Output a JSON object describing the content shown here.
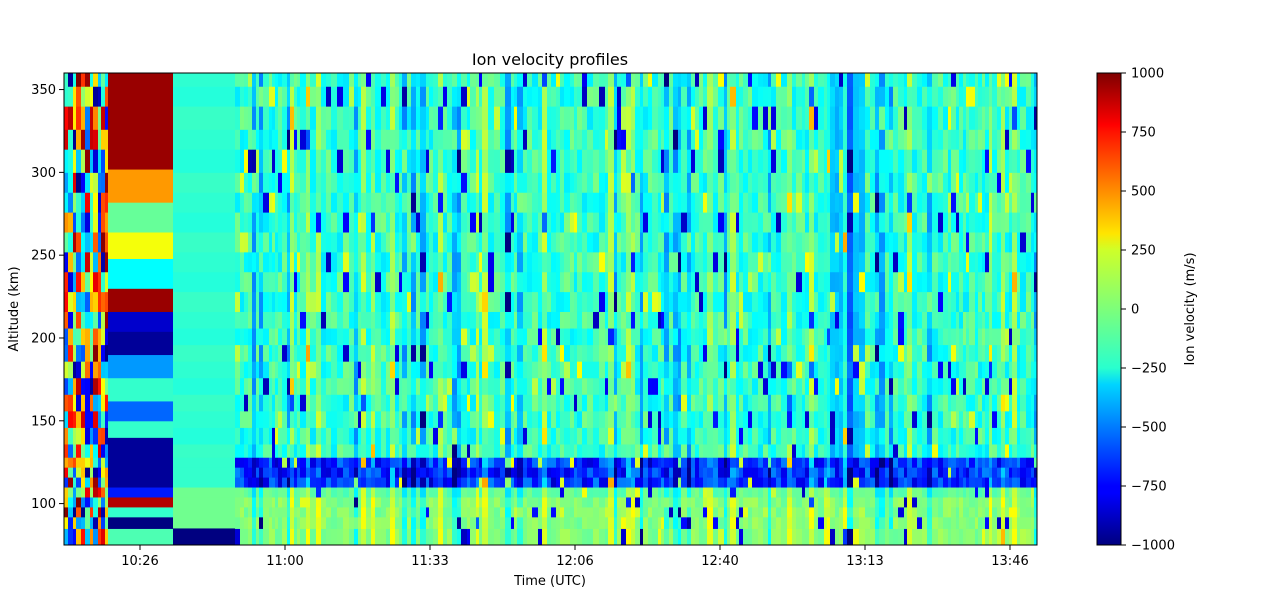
{
  "chart_data": {
    "type": "heatmap",
    "title": "Ion velocity profiles",
    "xlabel": "Time (UTC)",
    "ylabel": "Altitude (km)",
    "x_ticks": [
      "10:26",
      "11:00",
      "11:33",
      "12:06",
      "12:40",
      "13:13",
      "13:46"
    ],
    "y_ticks": [
      100,
      150,
      200,
      250,
      300,
      350
    ],
    "ylim": [
      75,
      360
    ],
    "colorbar": {
      "label": "Ion velocity (m/s)",
      "colormap": "jet",
      "vmin": -1000,
      "vmax": 1000,
      "ticks": [
        -1000,
        -750,
        -500,
        -250,
        0,
        250,
        500,
        750,
        1000
      ]
    },
    "grid": false
  }
}
